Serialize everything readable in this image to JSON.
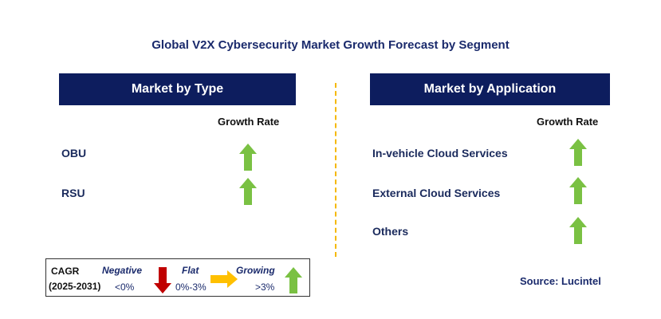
{
  "title": "Global V2X Cybersecurity Market Growth Forecast by Segment",
  "left_panel": {
    "header": "Market by Type",
    "growth_rate_label": "Growth Rate",
    "rows": [
      {
        "label": "OBU",
        "trend": "growing"
      },
      {
        "label": "RSU",
        "trend": "growing"
      }
    ]
  },
  "right_panel": {
    "header": "Market by Application",
    "growth_rate_label": "Growth Rate",
    "rows": [
      {
        "label": "In-vehicle Cloud Services",
        "trend": "growing"
      },
      {
        "label": "External Cloud Services",
        "trend": "growing"
      },
      {
        "label": "Others",
        "trend": "growing"
      }
    ]
  },
  "legend": {
    "cagr": "CAGR",
    "period": "(2025-2031)",
    "negative_label": "Negative",
    "negative_range": "<0%",
    "flat_label": "Flat",
    "flat_range": "0%-3%",
    "growing_label": "Growing",
    "growing_range": ">3%"
  },
  "source": "Source: Lucintel",
  "colors": {
    "header_bg": "#0d1d5e",
    "growing": "#7ac143",
    "negative": "#c00000",
    "flat": "#ffc000",
    "divider": "#f5b800"
  },
  "icons": {
    "growing": "green-up-arrow-icon",
    "negative": "red-down-arrow-icon",
    "flat": "yellow-right-arrow-icon"
  }
}
